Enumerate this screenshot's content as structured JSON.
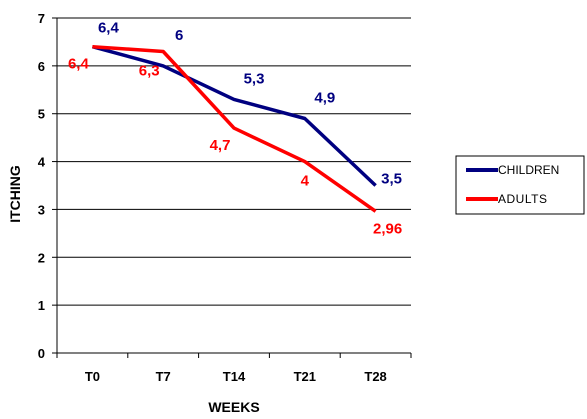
{
  "chart_data": {
    "type": "line",
    "title": "",
    "xlabel": "WEEKS",
    "ylabel": "ITCHING",
    "categories": [
      "T0",
      "T7",
      "T14",
      "T21",
      "T28"
    ],
    "ylim": [
      0,
      7
    ],
    "yticks": [
      "0",
      "1",
      "2",
      "3",
      "4",
      "5",
      "6",
      "7"
    ],
    "grid": true,
    "legend_position": "right",
    "series": [
      {
        "name": "CHILDREN",
        "color": "#000080",
        "values": [
          6.4,
          6.0,
          5.3,
          4.9,
          3.5
        ],
        "labels": [
          "6,4",
          "6",
          "5,3",
          "4,9",
          "3,5"
        ]
      },
      {
        "name": "ADULTS",
        "color": "#ff0000",
        "values": [
          6.4,
          6.3,
          4.7,
          4.0,
          2.96
        ],
        "labels": [
          "6,4",
          "6,3",
          "4,7",
          "4",
          "2,96"
        ]
      }
    ]
  }
}
